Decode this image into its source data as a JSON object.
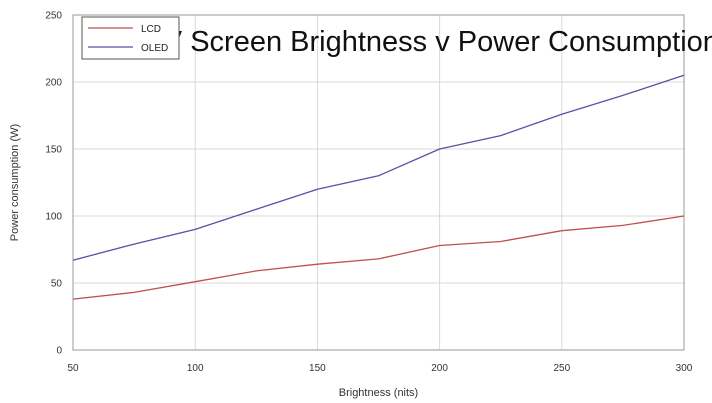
{
  "chart_data": {
    "type": "line",
    "title": "TV Screen Brightness v Power Consumption",
    "xlabel": "Brightness (nits)",
    "ylabel": "Power consumption (W)",
    "xlim": [
      50,
      300
    ],
    "ylim": [
      0,
      250
    ],
    "x_ticks": [
      50,
      100,
      150,
      200,
      250,
      300
    ],
    "y_ticks": [
      0,
      50,
      100,
      150,
      200,
      250
    ],
    "grid": true,
    "legend_position": "top-left",
    "x": [
      50,
      75,
      100,
      125,
      150,
      175,
      200,
      225,
      250,
      275,
      300
    ],
    "series": [
      {
        "name": "LCD",
        "color": "#c0504d",
        "values": [
          38,
          43,
          51,
          59,
          64,
          68,
          78,
          81,
          89,
          93,
          100
        ]
      },
      {
        "name": "OLED",
        "color": "#5b4fa8",
        "values": [
          67,
          79,
          90,
          105,
          120,
          130,
          150,
          160,
          176,
          190,
          205
        ]
      }
    ]
  }
}
